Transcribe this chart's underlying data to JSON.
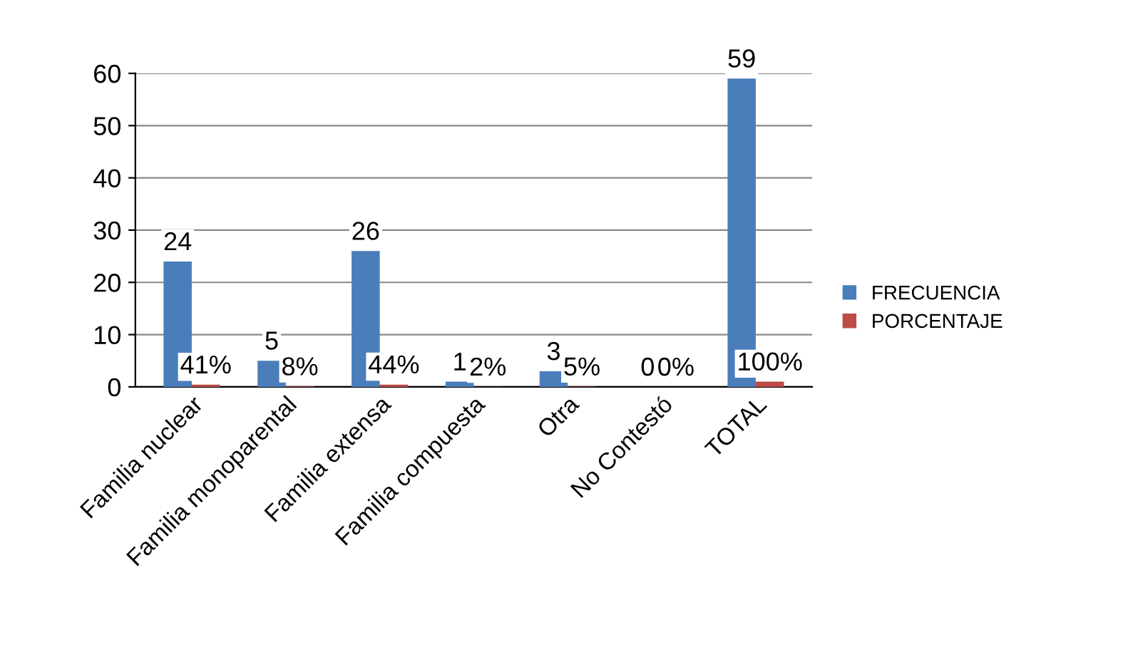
{
  "chart_data": {
    "type": "bar",
    "categories": [
      "Familia nuclear",
      "Familia monoparental",
      "Familia extensa",
      "Familia compuesta",
      "Otra",
      "No Contestó",
      "TOTAL"
    ],
    "series": [
      {
        "name": "FRECUENCIA",
        "color": "#4a7ebb",
        "values": [
          24,
          5,
          26,
          1,
          3,
          0,
          59
        ],
        "value_labels": [
          "24",
          "5",
          "26",
          "1",
          "3",
          "0",
          "59"
        ]
      },
      {
        "name": "PORCENTAJE",
        "color": "#be4b48",
        "values": [
          0.41,
          0.08,
          0.44,
          0.02,
          0.05,
          0,
          1
        ],
        "value_labels": [
          "41%",
          "8%",
          "44%",
          "2%",
          "5%",
          "0%",
          "100%"
        ]
      }
    ],
    "ylim": [
      0,
      60
    ],
    "yticks": [
      0,
      10,
      20,
      30,
      40,
      50,
      60
    ],
    "grid": "y",
    "legend": "right"
  }
}
